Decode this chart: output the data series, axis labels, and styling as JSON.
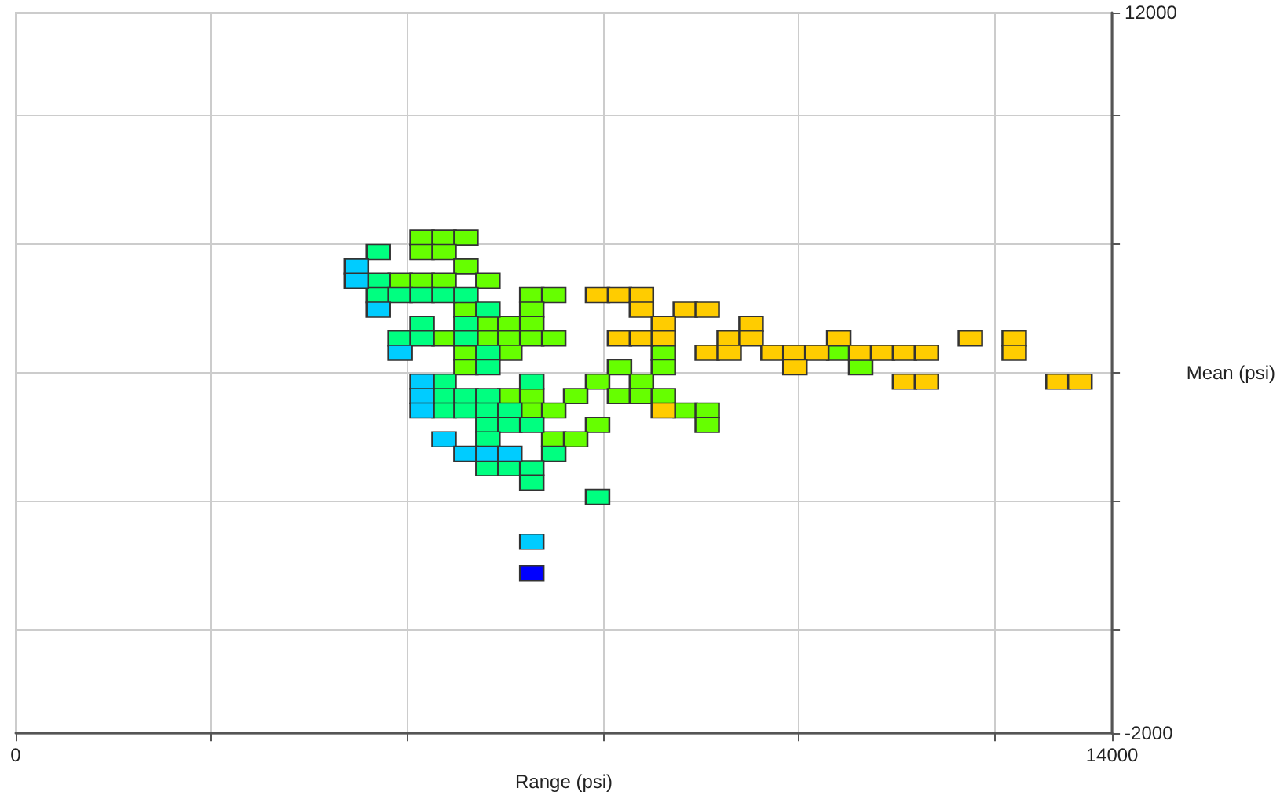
{
  "chart_data": {
    "type": "scatter",
    "xlabel": "Range (psi)",
    "ylabel": "Mean (psi)",
    "marker": "square",
    "grid": true,
    "xlim": [
      0,
      14000
    ],
    "xticks": [
      0,
      {
        "value": 2500,
        "label": null
      },
      {
        "value": 5000,
        "label": null
      },
      {
        "value": 7500,
        "label": null
      },
      {
        "value": 10000,
        "label": null
      },
      {
        "value": 12500,
        "label": null
      },
      14000
    ],
    "ylim": [
      -2000,
      12000
    ],
    "yticks": [
      -2000,
      {
        "value": 0,
        "label": null
      },
      {
        "value": 2500,
        "label": null
      },
      {
        "value": 5000,
        "label": null
      },
      {
        "value": 7500,
        "label": null
      },
      {
        "value": 10000,
        "label": null
      },
      12000
    ],
    "series": [
      {
        "color": "#66ff00",
        "x": [
          5190,
          5470,
          5750,
          5190,
          5470,
          5750,
          4910,
          5190,
          5470,
          6030,
          6590,
          6870,
          5750,
          6590,
          6030,
          6310,
          6590,
          5470,
          6030,
          6310,
          6590,
          6870,
          5750,
          6310,
          8270,
          10510,
          5750,
          7710,
          8270,
          10790,
          7430,
          7990,
          6310,
          6590,
          7150,
          7710,
          7990,
          8270,
          6590,
          6870,
          8550,
          8830,
          7430,
          8830,
          6870,
          7150
        ],
        "values": [
          7630,
          7630,
          7630,
          7350,
          7350,
          7070,
          6790,
          6790,
          6790,
          6790,
          6510,
          6510,
          6230,
          6230,
          5950,
          5950,
          5950,
          5670,
          5670,
          5670,
          5670,
          5670,
          5390,
          5390,
          5390,
          5390,
          5110,
          5110,
          5110,
          5110,
          4830,
          4830,
          4550,
          4550,
          4550,
          4550,
          4550,
          4550,
          4270,
          4270,
          4270,
          4270,
          3990,
          3990,
          3710,
          3710
        ]
      },
      {
        "color": "#00ff80",
        "x": [
          4630,
          4630,
          4630,
          4910,
          5190,
          5470,
          5750,
          6030,
          5190,
          5750,
          4910,
          5190,
          5750,
          6030,
          6030,
          5470,
          6590,
          5470,
          5750,
          6030,
          5470,
          5750,
          6030,
          6310,
          6030,
          6310,
          6590,
          6030,
          6870,
          6030,
          6310,
          6590,
          6590,
          7430
        ],
        "values": [
          7350,
          6790,
          6510,
          6510,
          6510,
          6510,
          6510,
          6230,
          5950,
          5950,
          5670,
          5670,
          5670,
          5390,
          5110,
          4830,
          4830,
          4550,
          4550,
          4550,
          4270,
          4270,
          4270,
          4270,
          3990,
          3990,
          3990,
          3710,
          3430,
          3150,
          3150,
          3150,
          2870,
          2590
        ]
      },
      {
        "color": "#00ccff",
        "x": [
          4350,
          4350,
          4630,
          4910,
          5190,
          5190,
          5190,
          5470,
          5750,
          6030,
          6310,
          6590
        ],
        "values": [
          7070,
          6790,
          6230,
          5390,
          4830,
          4550,
          4270,
          3710,
          3430,
          3430,
          3430,
          1720
        ]
      },
      {
        "color": "#0000ff",
        "x": [
          6590
        ],
        "values": [
          1110
        ]
      },
      {
        "color": "#ffcc00",
        "x": [
          7430,
          7710,
          7990,
          7990,
          8550,
          8830,
          8270,
          9390,
          7710,
          7990,
          8270,
          9110,
          9390,
          10510,
          12190,
          12750,
          8830,
          9110,
          9670,
          9950,
          10230,
          10790,
          11070,
          11350,
          11630,
          12750,
          9950,
          11350,
          11630,
          13310,
          13590,
          8270
        ],
        "values": [
          6510,
          6510,
          6510,
          6230,
          6230,
          6230,
          5950,
          5950,
          5670,
          5670,
          5670,
          5670,
          5670,
          5670,
          5670,
          5670,
          5390,
          5390,
          5390,
          5390,
          5390,
          5390,
          5390,
          5390,
          5390,
          5390,
          5110,
          4830,
          4830,
          4830,
          4830,
          4270
        ]
      }
    ]
  }
}
